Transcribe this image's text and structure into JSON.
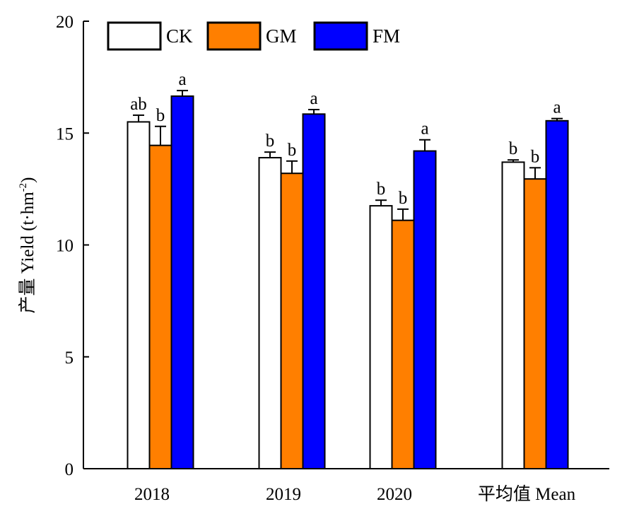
{
  "chart_data": {
    "type": "bar",
    "title": "",
    "xlabel": "",
    "ylabel": "产量 Yield (t·hm",
    "ylabel_sup": "-2",
    "ylabel_close": ")",
    "categories": [
      "2018",
      "2019",
      "2020",
      "平均值 Mean"
    ],
    "ylim": [
      0,
      20
    ],
    "yticks": [
      0,
      5,
      10,
      15,
      20
    ],
    "grid": false,
    "legend_position": "top-left",
    "series": [
      {
        "name": "CK",
        "color": "#ffffff",
        "values": [
          15.5,
          13.9,
          11.75,
          13.7
        ],
        "errors": [
          0.3,
          0.25,
          0.25,
          0.1
        ],
        "labels": [
          "ab",
          "b",
          "b",
          "b"
        ]
      },
      {
        "name": "GM",
        "color": "#ff7f00",
        "values": [
          14.45,
          13.2,
          11.1,
          12.95
        ],
        "errors": [
          0.85,
          0.55,
          0.5,
          0.5
        ],
        "labels": [
          "b",
          "b",
          "b",
          "b"
        ]
      },
      {
        "name": "FM",
        "color": "#0000ff",
        "values": [
          16.65,
          15.85,
          14.2,
          15.55
        ],
        "errors": [
          0.25,
          0.2,
          0.5,
          0.1
        ],
        "labels": [
          "a",
          "a",
          "a",
          "a"
        ]
      }
    ]
  }
}
